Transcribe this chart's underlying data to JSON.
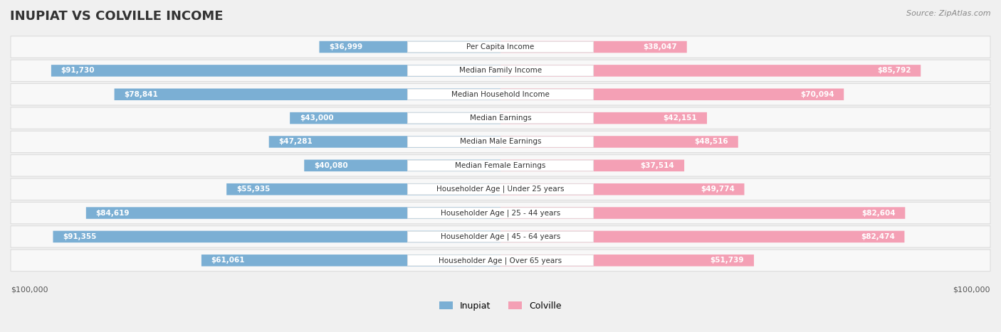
{
  "title": "INUPIAT VS COLVILLE INCOME",
  "source": "Source: ZipAtlas.com",
  "max_value": 100000,
  "categories": [
    "Per Capita Income",
    "Median Family Income",
    "Median Household Income",
    "Median Earnings",
    "Median Male Earnings",
    "Median Female Earnings",
    "Householder Age | Under 25 years",
    "Householder Age | 25 - 44 years",
    "Householder Age | 45 - 64 years",
    "Householder Age | Over 65 years"
  ],
  "inupiat_values": [
    36999,
    91730,
    78841,
    43000,
    47281,
    40080,
    55935,
    84619,
    91355,
    61061
  ],
  "colville_values": [
    38047,
    85792,
    70094,
    42151,
    48516,
    37514,
    49774,
    82604,
    82474,
    51739
  ],
  "inupiat_color": "#7bafd4",
  "inupiat_color_dark": "#5b8db8",
  "colville_color": "#f4a0b5",
  "colville_color_dark": "#e87090",
  "label_color_inside": "#ffffff",
  "label_color_outside": "#555555",
  "bg_color": "#f0f0f0",
  "row_bg_color": "#f8f8f8",
  "row_border_color": "#dddddd",
  "center_label_bg": "#ffffff",
  "figwidth": 14.06,
  "figheight": 4.67
}
